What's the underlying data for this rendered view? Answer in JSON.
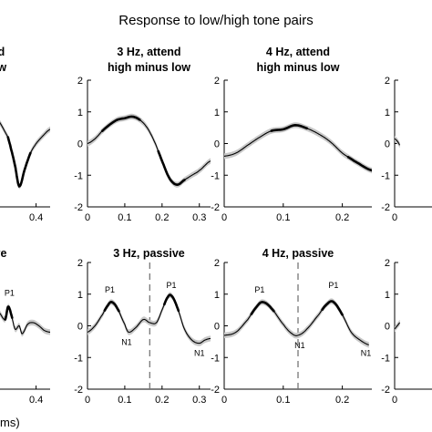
{
  "figure": {
    "title": "Response to low/high tone pairs",
    "xlabel_fragment": "ms)"
  },
  "colors": {
    "trace": "#000000",
    "ci": "#c8c8c8",
    "marker": "#777777"
  },
  "chart_data": [
    {
      "type": "line",
      "id": "p11",
      "title": [
        "attend",
        "minus low"
      ],
      "ylim": [
        -2,
        2
      ],
      "yticks": [],
      "xlim": [
        0.0,
        0.5
      ],
      "xticks": [
        {
          "v": 0.4,
          "label": "0.4"
        }
      ],
      "series": [
        {
          "x": [
            0,
            0.05,
            0.1,
            0.15,
            0.2,
            0.22,
            0.25,
            0.28,
            0.32,
            0.36,
            0.4,
            0.45,
            0.5
          ],
          "y": [
            1.6,
            1.3,
            0.95,
            0.6,
            0.2,
            -0.15,
            -0.7,
            -1.35,
            -0.8,
            -0.3,
            0.0,
            0.25,
            0.45
          ],
          "bold": [
            [
              0.2,
              0.36
            ]
          ]
        }
      ]
    },
    {
      "type": "line",
      "id": "p12",
      "title": [
        "3 Hz, attend",
        "high minus low"
      ],
      "ylim": [
        -2,
        2
      ],
      "yticks": [
        {
          "v": 2,
          "label": "2"
        },
        {
          "v": 1,
          "label": "1"
        },
        {
          "v": 0,
          "label": "0"
        },
        {
          "v": -1,
          "label": "-1"
        },
        {
          "v": -2,
          "label": "-2"
        }
      ],
      "xlim": [
        0,
        0.33
      ],
      "xticks": [
        {
          "v": 0,
          "label": "0"
        },
        {
          "v": 0.1,
          "label": "0.1"
        },
        {
          "v": 0.2,
          "label": "0.2"
        },
        {
          "v": 0.3,
          "label": "0.3"
        }
      ],
      "series": [
        {
          "x": [
            0,
            0.02,
            0.04,
            0.06,
            0.08,
            0.1,
            0.12,
            0.14,
            0.16,
            0.18,
            0.2,
            0.22,
            0.24,
            0.26,
            0.28,
            0.3,
            0.33
          ],
          "y": [
            0.0,
            0.15,
            0.4,
            0.6,
            0.75,
            0.8,
            0.85,
            0.75,
            0.5,
            0.05,
            -0.55,
            -1.1,
            -1.3,
            -1.15,
            -1.0,
            -0.85,
            -0.55
          ],
          "bold": [
            [
              0.04,
              0.14
            ],
            [
              0.19,
              0.26
            ]
          ]
        }
      ]
    },
    {
      "type": "line",
      "id": "p13",
      "title": [
        "4 Hz, attend",
        "high minus low"
      ],
      "ylim": [
        -2,
        2
      ],
      "yticks": [
        {
          "v": 2,
          "label": "2"
        },
        {
          "v": 1,
          "label": "1"
        },
        {
          "v": 0,
          "label": "0"
        },
        {
          "v": -1,
          "label": "-1"
        },
        {
          "v": -2,
          "label": "-2"
        }
      ],
      "xlim": [
        0,
        0.25
      ],
      "xticks": [
        {
          "v": 0,
          "label": "0"
        },
        {
          "v": 0.1,
          "label": "0.1"
        },
        {
          "v": 0.2,
          "label": "0.2"
        }
      ],
      "series": [
        {
          "x": [
            0,
            0.02,
            0.04,
            0.06,
            0.08,
            0.1,
            0.12,
            0.14,
            0.16,
            0.18,
            0.2,
            0.22,
            0.25
          ],
          "y": [
            -0.4,
            -0.3,
            -0.05,
            0.2,
            0.4,
            0.45,
            0.58,
            0.48,
            0.3,
            0.05,
            -0.3,
            -0.55,
            -0.85
          ],
          "bold": [
            [
              0.08,
              0.14
            ],
            [
              0.21,
              0.25
            ]
          ]
        }
      ]
    },
    {
      "type": "line",
      "id": "p14",
      "title": [
        "h"
      ],
      "ylim": [
        -2,
        2
      ],
      "yticks": [
        {
          "v": 2,
          "label": "2"
        },
        {
          "v": 1,
          "label": "1"
        },
        {
          "v": 0,
          "label": "0"
        },
        {
          "v": -1,
          "label": "-1"
        },
        {
          "v": -2,
          "label": "-2"
        }
      ],
      "xlim": [
        0,
        0.2
      ],
      "xticks": [
        {
          "v": 0,
          "label": "0"
        }
      ],
      "series": [
        {
          "x": [
            0,
            0.005,
            0.01,
            0.015,
            0.02
          ],
          "y": [
            0.15,
            0.12,
            0.08,
            0.02,
            -0.05
          ],
          "bold": []
        }
      ]
    },
    {
      "type": "line",
      "id": "p21",
      "title": [
        "passive"
      ],
      "ylim": [
        -2,
        2
      ],
      "yticks": [],
      "xlim": [
        0.0,
        0.5
      ],
      "xticks": [
        {
          "v": 0.4,
          "label": "0.4"
        }
      ],
      "series": [
        {
          "x": [
            0,
            0.05,
            0.1,
            0.14,
            0.18,
            0.2,
            0.22,
            0.25,
            0.28,
            0.3,
            0.34,
            0.38,
            0.42,
            0.46,
            0.5
          ],
          "y": [
            0.3,
            0.35,
            0.5,
            0.4,
            0.2,
            0.6,
            0.4,
            -0.1,
            0.0,
            -0.25,
            0.05,
            0.1,
            0.0,
            -0.15,
            -0.2
          ],
          "bold": [
            [
              0.18,
              0.23
            ]
          ]
        }
      ],
      "annotations": [
        {
          "x": 0.21,
          "y": 0.95,
          "text": "P1"
        }
      ]
    },
    {
      "type": "line",
      "id": "p22",
      "title": [
        "3 Hz, passive"
      ],
      "ylim": [
        -2,
        2
      ],
      "yticks": [
        {
          "v": 2,
          "label": "2"
        },
        {
          "v": 1,
          "label": "1"
        },
        {
          "v": 0,
          "label": "0"
        },
        {
          "v": -1,
          "label": "-1"
        },
        {
          "v": -2,
          "label": "-2"
        }
      ],
      "xlim": [
        0,
        0.33
      ],
      "xticks": [
        {
          "v": 0,
          "label": "0"
        },
        {
          "v": 0.1,
          "label": "0.1"
        },
        {
          "v": 0.2,
          "label": "0.2"
        },
        {
          "v": 0.3,
          "label": "0.3"
        }
      ],
      "marker_x": 0.167,
      "series": [
        {
          "x": [
            0,
            0.02,
            0.04,
            0.055,
            0.065,
            0.08,
            0.1,
            0.11,
            0.13,
            0.15,
            0.167,
            0.185,
            0.2,
            0.215,
            0.225,
            0.24,
            0.26,
            0.28,
            0.3,
            0.315,
            0.33
          ],
          "y": [
            -0.2,
            0.0,
            0.35,
            0.65,
            0.75,
            0.55,
            0.05,
            -0.2,
            -0.05,
            0.2,
            0.1,
            0.1,
            0.5,
            0.9,
            0.95,
            0.6,
            -0.1,
            -0.45,
            -0.55,
            -0.45,
            -0.4
          ],
          "bold": [
            [
              0.045,
              0.085
            ],
            [
              0.205,
              0.245
            ]
          ]
        }
      ],
      "annotations": [
        {
          "x": 0.06,
          "y": 1.05,
          "text": "P1"
        },
        {
          "x": 0.225,
          "y": 1.2,
          "text": "P1"
        },
        {
          "x": 0.105,
          "y": -0.6,
          "text": "N1"
        },
        {
          "x": 0.3,
          "y": -0.95,
          "text": "N1"
        }
      ]
    },
    {
      "type": "line",
      "id": "p23",
      "title": [
        "4 Hz, passive"
      ],
      "ylim": [
        -2,
        2
      ],
      "yticks": [
        {
          "v": 2,
          "label": "2"
        },
        {
          "v": 1,
          "label": "1"
        },
        {
          "v": 0,
          "label": "0"
        },
        {
          "v": -1,
          "label": "-1"
        },
        {
          "v": -2,
          "label": "-2"
        }
      ],
      "xlim": [
        0,
        0.25
      ],
      "xticks": [
        {
          "v": 0,
          "label": "0"
        },
        {
          "v": 0.1,
          "label": "0.1"
        },
        {
          "v": 0.2,
          "label": "0.2"
        }
      ],
      "marker_x": 0.125,
      "series": [
        {
          "x": [
            0,
            0.02,
            0.04,
            0.055,
            0.065,
            0.08,
            0.1,
            0.115,
            0.125,
            0.14,
            0.16,
            0.175,
            0.185,
            0.2,
            0.215,
            0.23,
            0.245
          ],
          "y": [
            -0.3,
            -0.2,
            0.2,
            0.6,
            0.75,
            0.55,
            0.05,
            -0.25,
            -0.3,
            -0.1,
            0.35,
            0.7,
            0.75,
            0.35,
            -0.2,
            -0.45,
            -0.6
          ],
          "bold": [
            [
              0.045,
              0.085
            ],
            [
              0.165,
              0.2
            ]
          ]
        }
      ],
      "annotations": [
        {
          "x": 0.06,
          "y": 1.05,
          "text": "P1"
        },
        {
          "x": 0.185,
          "y": 1.2,
          "text": "P1"
        },
        {
          "x": 0.128,
          "y": -0.7,
          "text": "N1"
        },
        {
          "x": 0.24,
          "y": -0.95,
          "text": "N1"
        }
      ]
    },
    {
      "type": "line",
      "id": "p24",
      "title": [],
      "ylim": [
        -2,
        2
      ],
      "yticks": [
        {
          "v": 2,
          "label": "2"
        },
        {
          "v": 1,
          "label": "1"
        },
        {
          "v": 0,
          "label": "0"
        },
        {
          "v": -1,
          "label": "-1"
        },
        {
          "v": -2,
          "label": "-2"
        }
      ],
      "xlim": [
        0,
        0.2
      ],
      "xticks": [
        {
          "v": 0,
          "label": "0"
        }
      ],
      "series": [
        {
          "x": [
            0,
            0.005,
            0.01,
            0.015,
            0.02
          ],
          "y": [
            -0.1,
            -0.05,
            0.0,
            0.05,
            0.1
          ],
          "bold": []
        }
      ]
    }
  ]
}
